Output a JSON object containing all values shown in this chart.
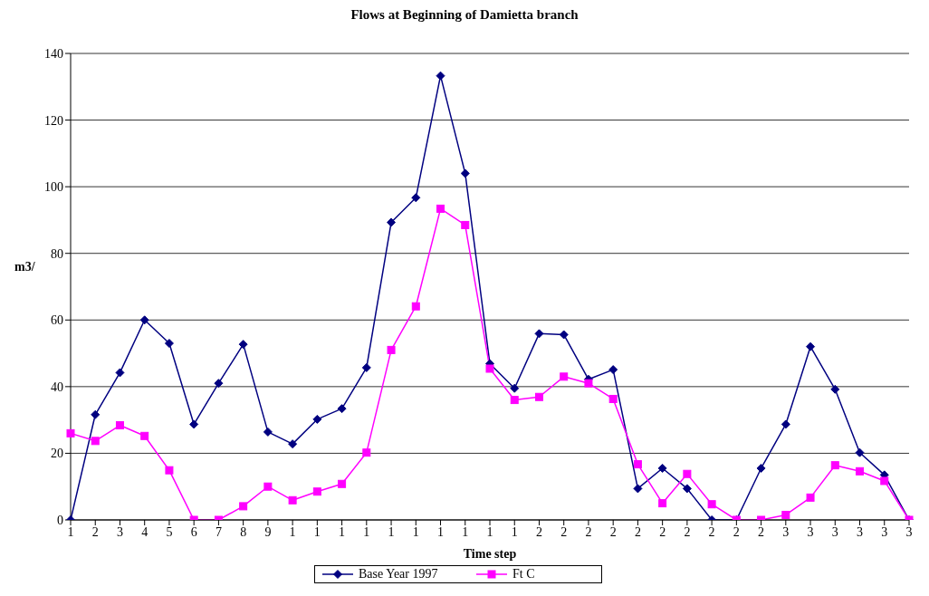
{
  "chart_data": {
    "type": "line",
    "title": "Flows at Beginning of Damietta branch",
    "xlabel": "Time step",
    "ylabel": "m3/",
    "categories": [
      "1",
      "2",
      "3",
      "4",
      "5",
      "6",
      "7",
      "8",
      "9",
      "1",
      "1",
      "1",
      "1",
      "1",
      "1",
      "1",
      "1",
      "1",
      "1",
      "2",
      "2",
      "2",
      "2",
      "2",
      "2",
      "2",
      "2",
      "2",
      "2",
      "3",
      "3",
      "3",
      "3",
      "3",
      "3"
    ],
    "series": [
      {
        "name": "Base Year 1997",
        "color": "#000080",
        "marker": "diamond",
        "values": [
          0,
          31.6,
          44.2,
          60,
          53,
          28.7,
          41,
          52.7,
          26.4,
          22.8,
          30.2,
          33.4,
          45.7,
          89.3,
          96.7,
          133.3,
          104,
          46.9,
          39.5,
          55.9,
          55.6,
          42.2,
          45.1,
          9.4,
          15.5,
          9.4,
          0,
          0,
          15.5,
          28.7,
          52,
          39.2,
          20.2,
          13.5,
          0
        ]
      },
      {
        "name": "Ft C",
        "color": "#ff00ff",
        "marker": "square",
        "values": [
          26,
          23.7,
          28.4,
          25.2,
          14.9,
          0,
          0,
          4.1,
          10,
          5.9,
          8.5,
          10.8,
          20.2,
          51,
          64.1,
          93.4,
          88.5,
          45.4,
          36,
          36.9,
          43,
          41,
          36.3,
          16.7,
          5,
          13.8,
          4.7,
          0,
          0,
          1.5,
          6.7,
          16.4,
          14.6,
          11.7,
          0
        ]
      }
    ],
    "ylim": [
      0,
      140
    ],
    "yticks": [
      0,
      20,
      40,
      60,
      80,
      100,
      120,
      140
    ],
    "grid": "y",
    "legend": "bottom",
    "line_style": "solid"
  }
}
